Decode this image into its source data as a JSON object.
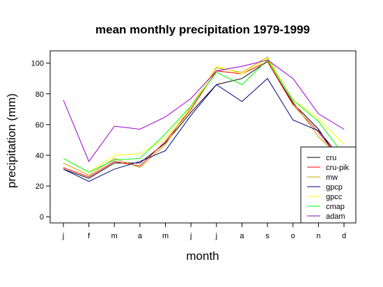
{
  "chart_data": {
    "type": "line",
    "title": "mean monthly precipitation 1979-1999",
    "xlabel": "month",
    "ylabel": "precipitation (mm)",
    "categories": [
      "j",
      "f",
      "m",
      "a",
      "m",
      "j",
      "j",
      "a",
      "s",
      "o",
      "n",
      "d"
    ],
    "yticks": [
      0,
      20,
      40,
      60,
      80,
      100
    ],
    "ylim": [
      -4,
      108
    ],
    "grid": false,
    "legend_position": "bottom-right",
    "series": [
      {
        "name": "cru",
        "color": "#000000",
        "values": [
          31,
          25,
          35,
          35,
          48,
          68,
          86,
          90,
          101,
          74,
          57,
          32
        ]
      },
      {
        "name": "cru-pik",
        "color": "#ff0000",
        "values": [
          32,
          26,
          36,
          33,
          49,
          70,
          95,
          93,
          101,
          73,
          55,
          34
        ]
      },
      {
        "name": "mw",
        "color": "#c8a000",
        "values": [
          35,
          27,
          38,
          32,
          47,
          72,
          97,
          94,
          104,
          75,
          52,
          36
        ]
      },
      {
        "name": "gpcp",
        "color": "#000080",
        "values": [
          31,
          23,
          31,
          36,
          43,
          66,
          86,
          75,
          90,
          63,
          56,
          36
        ]
      },
      {
        "name": "gpcc",
        "color": "#ffff00",
        "values": [
          38,
          29,
          40,
          41,
          51,
          71,
          98,
          93,
          103,
          76,
          64,
          47
        ]
      },
      {
        "name": "cmap",
        "color": "#00ff00",
        "values": [
          38,
          29,
          37,
          38,
          54,
          72,
          94,
          86,
          102,
          76,
          62,
          40
        ]
      },
      {
        "name": "adam",
        "color": "#9900cc",
        "values": [
          76,
          36,
          59,
          57,
          65,
          77,
          95,
          98,
          102,
          90,
          67,
          57
        ]
      }
    ]
  }
}
